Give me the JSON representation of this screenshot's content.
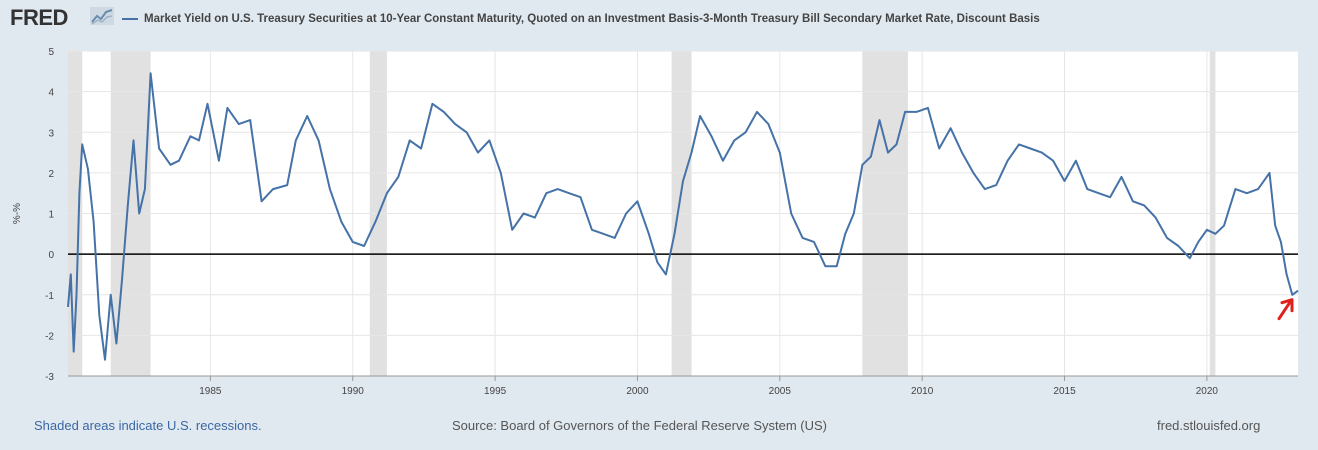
{
  "header": {
    "logo": "FRED",
    "logo_icon": "chart-icon"
  },
  "chart_data": {
    "type": "line",
    "title": "Market Yield on U.S. Treasury Securities at 10-Year Constant Maturity, Quoted on an Investment Basis-3-Month Treasury Bill Secondary Market Rate, Discount Basis",
    "ylabel": "%-%",
    "xlabel": "",
    "ylim": [
      -3,
      5
    ],
    "xlim": [
      1980.0,
      2023.2
    ],
    "yticks": [
      5,
      4,
      3,
      2,
      1,
      0,
      -1,
      -2,
      -3
    ],
    "xticks": [
      1985,
      1990,
      1995,
      2000,
      2005,
      2010,
      2015,
      2020
    ],
    "zero_line": 0,
    "recessions": [
      [
        1980.0,
        1980.5
      ],
      [
        1981.5,
        1982.9
      ],
      [
        1990.6,
        1991.2
      ],
      [
        2001.2,
        2001.9
      ],
      [
        2007.9,
        2009.5
      ],
      [
        2020.1,
        2020.3
      ]
    ],
    "series": [
      {
        "name": "Market Yield on U.S. Treasury Securities at 10-Year Constant Maturity, Quoted on an Investment Basis-3-Month Treasury Bill Secondary Market Rate, Discount Basis",
        "color": "#4572a7",
        "x": [
          1980.0,
          1980.1,
          1980.2,
          1980.3,
          1980.4,
          1980.5,
          1980.7,
          1980.9,
          1981.1,
          1981.3,
          1981.5,
          1981.7,
          1981.9,
          1982.1,
          1982.3,
          1982.5,
          1982.7,
          1982.9,
          1983.2,
          1983.6,
          1983.9,
          1984.3,
          1984.6,
          1984.9,
          1985.3,
          1985.6,
          1986.0,
          1986.4,
          1986.8,
          1987.2,
          1987.7,
          1988.0,
          1988.4,
          1988.8,
          1989.2,
          1989.6,
          1990.0,
          1990.4,
          1990.8,
          1991.2,
          1991.6,
          1992.0,
          1992.4,
          1992.8,
          1993.2,
          1993.6,
          1994.0,
          1994.4,
          1994.8,
          1995.2,
          1995.6,
          1996.0,
          1996.4,
          1996.8,
          1997.2,
          1997.6,
          1998.0,
          1998.4,
          1998.8,
          1999.2,
          1999.6,
          2000.0,
          2000.4,
          2000.7,
          2001.0,
          2001.3,
          2001.6,
          2001.9,
          2002.2,
          2002.6,
          2003.0,
          2003.4,
          2003.8,
          2004.2,
          2004.6,
          2005.0,
          2005.4,
          2005.8,
          2006.2,
          2006.6,
          2007.0,
          2007.3,
          2007.6,
          2007.9,
          2008.2,
          2008.5,
          2008.8,
          2009.1,
          2009.4,
          2009.8,
          2010.2,
          2010.6,
          2011.0,
          2011.4,
          2011.8,
          2012.2,
          2012.6,
          2013.0,
          2013.4,
          2013.8,
          2014.2,
          2014.6,
          2015.0,
          2015.4,
          2015.8,
          2016.2,
          2016.6,
          2017.0,
          2017.4,
          2017.8,
          2018.2,
          2018.6,
          2019.0,
          2019.4,
          2019.7,
          2020.0,
          2020.3,
          2020.6,
          2021.0,
          2021.4,
          2021.8,
          2022.2,
          2022.4,
          2022.6,
          2022.8,
          2023.0,
          2023.2
        ],
        "values": [
          -1.3,
          -0.5,
          -2.4,
          -1.0,
          1.5,
          2.7,
          2.1,
          0.8,
          -1.5,
          -2.6,
          -1.0,
          -2.2,
          -0.6,
          1.2,
          2.8,
          1.0,
          1.6,
          4.45,
          2.6,
          2.2,
          2.3,
          2.9,
          2.8,
          3.7,
          2.3,
          3.6,
          3.2,
          3.3,
          1.3,
          1.6,
          1.7,
          2.8,
          3.4,
          2.8,
          1.6,
          0.8,
          0.3,
          0.2,
          0.8,
          1.5,
          1.9,
          2.8,
          2.6,
          3.7,
          3.5,
          3.2,
          3.0,
          2.5,
          2.8,
          2.0,
          0.6,
          1.0,
          0.9,
          1.5,
          1.6,
          1.5,
          1.4,
          0.6,
          0.5,
          0.4,
          1.0,
          1.3,
          0.5,
          -0.2,
          -0.5,
          0.5,
          1.8,
          2.5,
          3.4,
          2.9,
          2.3,
          2.8,
          3.0,
          3.5,
          3.2,
          2.5,
          1.0,
          0.4,
          0.3,
          -0.3,
          -0.3,
          0.5,
          1.0,
          2.2,
          2.4,
          3.3,
          2.5,
          2.7,
          3.5,
          3.5,
          3.6,
          2.6,
          3.1,
          2.5,
          2.0,
          1.6,
          1.7,
          2.3,
          2.7,
          2.6,
          2.5,
          2.3,
          1.8,
          2.3,
          1.6,
          1.5,
          1.4,
          1.9,
          1.3,
          1.2,
          0.9,
          0.4,
          0.2,
          -0.1,
          0.3,
          0.6,
          0.5,
          0.7,
          1.6,
          1.5,
          1.6,
          2.0,
          0.7,
          0.3,
          -0.5,
          -1.0,
          -0.9
        ]
      }
    ]
  },
  "annotation": {
    "icon": "red-arrow-icon"
  },
  "footer": {
    "note": "Shaded areas indicate U.S. recessions.",
    "source": "Source: Board of Governors of the Federal Reserve System (US)",
    "url": "fred.stlouisfed.org"
  }
}
